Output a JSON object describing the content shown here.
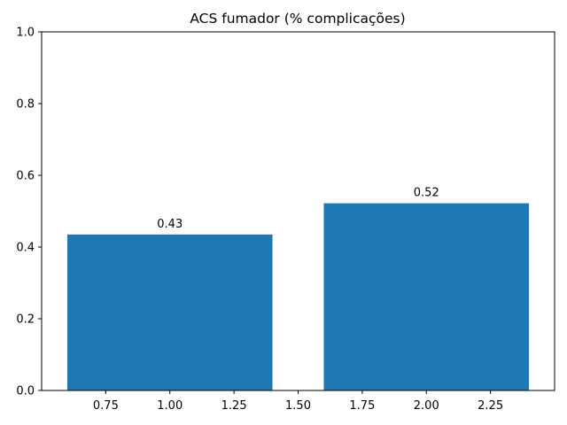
{
  "chart_data": {
    "type": "bar",
    "title": "ACS fumador (% complicações)",
    "xlabel": "",
    "ylabel": "",
    "xlim": [
      0.5,
      2.5
    ],
    "ylim": [
      0,
      1.0
    ],
    "x_ticks": [
      "0.75",
      "1.00",
      "1.25",
      "1.50",
      "1.75",
      "2.00",
      "2.25"
    ],
    "y_ticks": [
      "0.0",
      "0.2",
      "0.4",
      "0.6",
      "0.8",
      "1.0"
    ],
    "bar_width": 0.8,
    "bars": [
      {
        "x": 1.0,
        "value": 0.435,
        "label": "0.43"
      },
      {
        "x": 2.0,
        "value": 0.522,
        "label": "0.52"
      }
    ],
    "grid": false,
    "legend": "none",
    "color": "#1f77b4"
  }
}
